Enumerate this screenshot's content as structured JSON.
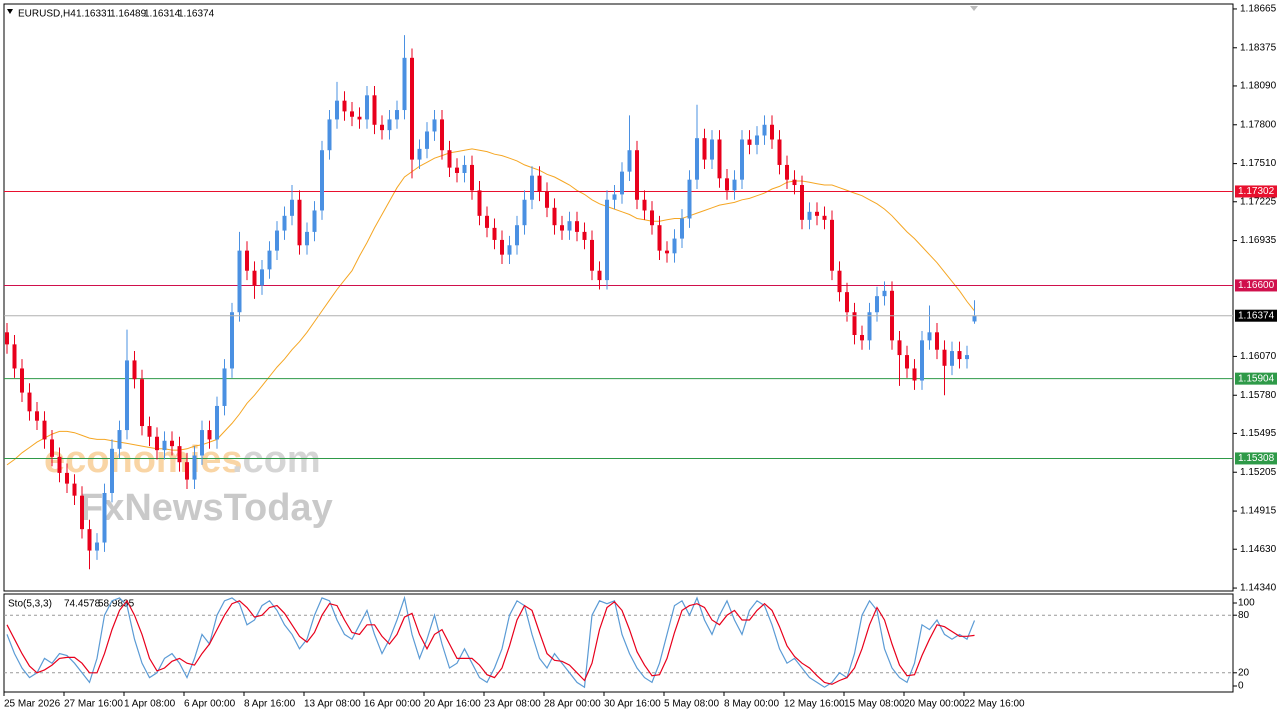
{
  "chart_data": {
    "type": "candlestick",
    "symbol": "EURUSD,H4",
    "categories": [
      "25 Mar 2026",
      null,
      null,
      null,
      null,
      null,
      null,
      null,
      "27 Mar 16:00",
      null,
      null,
      null,
      null,
      null,
      null,
      null,
      "1 Apr 08:00",
      null,
      null,
      null,
      null,
      null,
      null,
      null,
      "6 Apr 00:00",
      null,
      null,
      null,
      null,
      null,
      null,
      null,
      "8 Apr 16:00",
      null,
      null,
      null,
      null,
      null,
      null,
      null,
      "13 Apr 08:00",
      null,
      null,
      null,
      null,
      null,
      null,
      null,
      "16 Apr 00:00",
      null,
      null,
      null,
      null,
      null,
      null,
      null,
      "20 Apr 16:00",
      null,
      null,
      null,
      null,
      null,
      null,
      null,
      "23 Apr 08:00",
      null,
      null,
      null,
      null,
      null,
      null,
      null,
      "28 Apr 00:00",
      null,
      null,
      null,
      null,
      null,
      null,
      null,
      "30 Apr 16:00",
      null,
      null,
      null,
      null,
      null,
      null,
      null,
      "5 May 08:00",
      null,
      null,
      null,
      null,
      null,
      null,
      null,
      "8 May 00:00",
      null,
      null,
      null,
      null,
      null,
      null,
      null,
      "12 May 16:00",
      null,
      null,
      null,
      null,
      null,
      null,
      null,
      "15 May 08:00",
      null,
      null,
      null,
      null,
      null,
      null,
      null,
      "20 May 00:00",
      null,
      null,
      null,
      null,
      null,
      null,
      null,
      "22 May 16:00",
      null
    ],
    "open": [
      1.1625,
      1.1616,
      1.1598,
      1.158,
      1.1566,
      1.1559,
      1.1545,
      1.1532,
      1.152,
      1.1512,
      1.1503,
      1.1478,
      1.1462,
      1.1468,
      1.1505,
      1.1538,
      1.1552,
      1.1604,
      1.159,
      1.1555,
      1.1547,
      1.1537,
      1.1544,
      1.154,
      1.1528,
      1.1515,
      1.1533,
      1.1552,
      1.1545,
      1.157,
      1.1598,
      1.164,
      1.1686,
      1.1671,
      1.166,
      1.1672,
      1.1686,
      1.1701,
      1.1712,
      1.1724,
      1.169,
      1.17,
      1.1716,
      1.1761,
      1.1784,
      1.1798,
      1.179,
      1.1786,
      1.1784,
      1.1802,
      1.178,
      1.1776,
      1.1784,
      1.1791,
      1.183,
      1.1754,
      1.1762,
      1.1775,
      1.1784,
      1.1761,
      1.1748,
      1.1744,
      1.175,
      1.1731,
      1.1712,
      1.1703,
      1.1694,
      1.1683,
      1.169,
      1.1705,
      1.1724,
      1.1742,
      1.173,
      1.1718,
      1.1705,
      1.1701,
      1.1708,
      1.17,
      1.1694,
      1.1671,
      1.1664,
      1.1724,
      1.1728,
      1.1745,
      1.1761,
      1.1724,
      1.1716,
      1.1705,
      1.1686,
      1.1684,
      1.1695,
      1.171,
      1.1739,
      1.177,
      1.1754,
      1.1769,
      1.174,
      1.1731,
      1.1739,
      1.1769,
      1.1765,
      1.1772,
      1.178,
      1.1769,
      1.175,
      1.1739,
      1.1735,
      1.1709,
      1.1715,
      1.1712,
      1.1709,
      1.1671,
      1.1655,
      1.164,
      1.1623,
      1.1619,
      1.164,
      1.1652,
      1.1656,
      1.1619,
      1.1608,
      1.1598,
      1.1589,
      1.1619,
      1.1625,
      1.1612,
      1.16,
      1.1611,
      1.1605,
      1.16331
    ],
    "high": [
      1.1632,
      1.1623,
      1.1605,
      1.1587,
      1.1573,
      1.1566,
      1.1552,
      1.1539,
      1.1527,
      1.1519,
      1.151,
      1.1485,
      1.1475,
      1.1512,
      1.1545,
      1.1559,
      1.1627,
      1.1611,
      1.1597,
      1.1562,
      1.1554,
      1.1551,
      1.1551,
      1.1547,
      1.1535,
      1.154,
      1.1559,
      1.1559,
      1.1577,
      1.1605,
      1.1647,
      1.17,
      1.1693,
      1.1678,
      1.1679,
      1.1693,
      1.1708,
      1.1719,
      1.1735,
      1.1731,
      1.1707,
      1.1723,
      1.1768,
      1.1791,
      1.1812,
      1.1805,
      1.1797,
      1.1793,
      1.1809,
      1.1809,
      1.1787,
      1.1791,
      1.1798,
      1.1847,
      1.1837,
      1.1769,
      1.1782,
      1.1791,
      1.1791,
      1.1768,
      1.1755,
      1.1757,
      1.1757,
      1.1738,
      1.1719,
      1.171,
      1.1701,
      1.1697,
      1.1712,
      1.1731,
      1.1749,
      1.1749,
      1.1737,
      1.1725,
      1.1712,
      1.1715,
      1.1715,
      1.1707,
      1.1701,
      1.1678,
      1.1731,
      1.1735,
      1.1752,
      1.1787,
      1.1768,
      1.1731,
      1.1723,
      1.1712,
      1.1693,
      1.1702,
      1.1717,
      1.1746,
      1.1795,
      1.1777,
      1.1776,
      1.1776,
      1.1747,
      1.1746,
      1.1776,
      1.1776,
      1.1779,
      1.1787,
      1.1787,
      1.1776,
      1.1757,
      1.1746,
      1.1742,
      1.1722,
      1.1722,
      1.1719,
      1.1716,
      1.1678,
      1.1662,
      1.1647,
      1.163,
      1.1647,
      1.1659,
      1.1663,
      1.1663,
      1.1626,
      1.1615,
      1.1605,
      1.1626,
      1.1645,
      1.1632,
      1.1619,
      1.1618,
      1.1618,
      1.1615,
      1.16489
    ],
    "low": [
      1.1609,
      1.1591,
      1.1573,
      1.1559,
      1.1552,
      1.1538,
      1.1525,
      1.1513,
      1.1505,
      1.1496,
      1.1471,
      1.1448,
      1.1455,
      1.1461,
      1.1498,
      1.1531,
      1.1545,
      1.1583,
      1.1548,
      1.154,
      1.153,
      1.153,
      1.1533,
      1.1521,
      1.1508,
      1.1508,
      1.1526,
      1.1538,
      1.1538,
      1.1563,
      1.1591,
      1.1633,
      1.1664,
      1.165,
      1.1653,
      1.1665,
      1.1679,
      1.1694,
      1.1705,
      1.1683,
      1.1683,
      1.1693,
      1.1709,
      1.1754,
      1.1777,
      1.1783,
      1.1779,
      1.1777,
      1.1777,
      1.1773,
      1.1769,
      1.1769,
      1.1777,
      1.1784,
      1.174,
      1.1747,
      1.1755,
      1.1768,
      1.1754,
      1.1741,
      1.1737,
      1.1737,
      1.1724,
      1.1705,
      1.1696,
      1.1687,
      1.1676,
      1.1676,
      1.1683,
      1.1698,
      1.1717,
      1.1723,
      1.1711,
      1.1698,
      1.1694,
      1.1694,
      1.1693,
      1.1687,
      1.1664,
      1.1657,
      1.1657,
      1.1717,
      1.1721,
      1.1738,
      1.1717,
      1.1709,
      1.1698,
      1.1679,
      1.1677,
      1.1677,
      1.1688,
      1.1703,
      1.1732,
      1.1747,
      1.1747,
      1.1733,
      1.1724,
      1.1724,
      1.1732,
      1.1758,
      1.1758,
      1.1765,
      1.1762,
      1.1743,
      1.1732,
      1.1728,
      1.1702,
      1.1702,
      1.1705,
      1.1702,
      1.1664,
      1.1648,
      1.1633,
      1.1616,
      1.1612,
      1.1612,
      1.1633,
      1.1645,
      1.1612,
      1.1585,
      1.1591,
      1.1582,
      1.1582,
      1.1612,
      1.1605,
      1.1578,
      1.1593,
      1.1598,
      1.1598,
      1.16314
    ],
    "close": [
      1.1616,
      1.1598,
      1.158,
      1.1566,
      1.1559,
      1.1545,
      1.1532,
      1.152,
      1.1512,
      1.1503,
      1.1478,
      1.1462,
      1.1468,
      1.1505,
      1.1538,
      1.1552,
      1.1604,
      1.159,
      1.1555,
      1.1547,
      1.1537,
      1.1544,
      1.154,
      1.1528,
      1.1515,
      1.1533,
      1.1552,
      1.1545,
      1.157,
      1.1598,
      1.164,
      1.1686,
      1.1671,
      1.166,
      1.1672,
      1.1686,
      1.1701,
      1.1712,
      1.1724,
      1.169,
      1.17,
      1.1716,
      1.1761,
      1.1784,
      1.1798,
      1.179,
      1.1786,
      1.1784,
      1.1802,
      1.178,
      1.1776,
      1.1784,
      1.1791,
      1.183,
      1.1754,
      1.1762,
      1.1775,
      1.1784,
      1.1761,
      1.1748,
      1.1744,
      1.175,
      1.1731,
      1.1712,
      1.1703,
      1.1694,
      1.1683,
      1.169,
      1.1705,
      1.1724,
      1.1742,
      1.173,
      1.1718,
      1.1705,
      1.1701,
      1.1708,
      1.17,
      1.1694,
      1.1671,
      1.1664,
      1.1724,
      1.1728,
      1.1745,
      1.1761,
      1.1724,
      1.1716,
      1.1705,
      1.1686,
      1.1684,
      1.1695,
      1.171,
      1.1739,
      1.177,
      1.1754,
      1.1769,
      1.174,
      1.1731,
      1.1739,
      1.1769,
      1.1765,
      1.1772,
      1.178,
      1.1769,
      1.175,
      1.1739,
      1.1735,
      1.1709,
      1.1715,
      1.1712,
      1.1709,
      1.1671,
      1.1655,
      1.164,
      1.1623,
      1.1619,
      1.164,
      1.1652,
      1.1656,
      1.1619,
      1.1608,
      1.1598,
      1.1589,
      1.1619,
      1.1625,
      1.1612,
      1.16,
      1.1611,
      1.1605,
      1.1608,
      1.16374
    ],
    "up_color": "#4a90e2",
    "down_color": "#e8001c",
    "ylim": [
      1.14318,
      1.18702
    ],
    "yticks": [
      1.18665,
      1.18375,
      {
        "value": 1.1809,
        "label": "1.18090"
      },
      {
        "value": 1.178,
        "label": "1.17800"
      },
      {
        "value": 1.1751,
        "label": "1.17510"
      },
      1.17225,
      1.16935,
      {
        "value": 1.1607,
        "label": "1.16070"
      },
      {
        "value": 1.1578,
        "label": "1.15780"
      },
      1.15495,
      1.15205,
      1.14915,
      {
        "value": 1.1463,
        "label": "1.14630"
      },
      {
        "value": 1.1434,
        "label": "1.14340"
      }
    ],
    "ma": {
      "color": "#f5a623",
      "values": [
        1.1526,
        1.153,
        1.1535,
        1.1539,
        1.1543,
        1.1546,
        1.1549,
        1.1551,
        1.1551,
        1.155,
        1.1548,
        1.1546,
        1.1545,
        1.1545,
        1.1544,
        1.1543,
        1.1542,
        1.1541,
        1.154,
        1.1539,
        1.1538,
        1.1538,
        1.1537,
        1.1537,
        1.1538,
        1.154,
        1.1541,
        1.1543,
        1.1545,
        1.1551,
        1.1557,
        1.1564,
        1.1572,
        1.1578,
        1.1585,
        1.1592,
        1.1599,
        1.1605,
        1.1612,
        1.1618,
        1.1625,
        1.1633,
        1.1641,
        1.1649,
        1.1657,
        1.1664,
        1.1671,
        1.1682,
        1.1692,
        1.1703,
        1.1713,
        1.1723,
        1.1733,
        1.1741,
        1.1745,
        1.1749,
        1.1752,
        1.1755,
        1.1757,
        1.1759,
        1.176,
        1.1761,
        1.1762,
        1.1761,
        1.176,
        1.1758,
        1.1757,
        1.1755,
        1.1753,
        1.175,
        1.1748,
        1.1746,
        1.1743,
        1.1741,
        1.1738,
        1.1735,
        1.1731,
        1.1728,
        1.1724,
        1.1721,
        1.1719,
        1.1717,
        1.1715,
        1.1713,
        1.171,
        1.1709,
        1.1708,
        1.1708,
        1.1709,
        1.171,
        1.171,
        1.1712,
        1.1714,
        1.1716,
        1.1718,
        1.172,
        1.1721,
        1.1722,
        1.1724,
        1.1725,
        1.1727,
        1.1729,
        1.1732,
        1.1734,
        1.1737,
        1.1738,
        1.1738,
        1.1737,
        1.1736,
        1.1735,
        1.1735,
        1.1733,
        1.1731,
        1.1729,
        1.1727,
        1.1724,
        1.1721,
        1.1717,
        1.1712,
        1.1706,
        1.17,
        1.1695,
        1.1689,
        1.1683,
        1.1677,
        1.167,
        1.1663,
        1.1656,
        1.1648,
        1.1641
      ]
    },
    "levels": [
      {
        "value": 1.17302,
        "color": "#e8102e"
      },
      {
        "value": 1.166,
        "label": "1.16600",
        "color": "#d0104c"
      },
      {
        "value": 1.15904,
        "color": "#2e9a48"
      },
      {
        "value": 1.15308,
        "color": "#2e9a48"
      }
    ],
    "current_price_color": "#b0b0b0",
    "watermark": [
      "economies",
      ".com",
      "FxNewsToday"
    ],
    "indicator": {
      "type": "stochastic",
      "name": "Sto(5,3,3)",
      "ylim": [
        0,
        100
      ],
      "yticks": [
        100,
        80,
        20,
        0
      ],
      "series": [
        {
          "color": "#5b9bd5",
          "values": [
            60,
            40,
            25,
            15,
            20,
            35,
            30,
            40,
            38,
            30,
            20,
            10,
            35,
            80,
            95,
            98,
            90,
            55,
            30,
            15,
            20,
            35,
            40,
            30,
            15,
            35,
            60,
            50,
            80,
            95,
            98,
            92,
            70,
            75,
            90,
            95,
            85,
            70,
            60,
            45,
            55,
            80,
            98,
            95,
            75,
            60,
            55,
            70,
            85,
            60,
            40,
            55,
            75,
            98,
            60,
            35,
            55,
            80,
            50,
            25,
            30,
            45,
            30,
            15,
            10,
            25,
            45,
            80,
            95,
            90,
            60,
            35,
            25,
            40,
            30,
            20,
            10,
            5,
            80,
            95,
            92,
            95,
            60,
            40,
            25,
            15,
            10,
            30,
            60,
            90,
            95,
            80,
            98,
            75,
            60,
            80,
            95,
            75,
            60,
            85,
            95,
            90,
            70,
            45,
            30,
            35,
            25,
            15,
            10,
            5,
            10,
            20,
            15,
            40,
            80,
            95,
            85,
            45,
            25,
            15,
            10,
            30,
            70,
            65,
            75,
            60,
            55,
            60,
            55,
            74.4578
          ]
        },
        {
          "color": "#e8001c",
          "values": [
            70,
            55,
            40,
            27,
            20,
            23,
            28,
            35,
            36,
            36,
            30,
            20,
            20,
            40,
            65,
            85,
            95,
            80,
            60,
            35,
            22,
            25,
            32,
            35,
            30,
            28,
            40,
            50,
            65,
            80,
            92,
            95,
            88,
            78,
            80,
            88,
            90,
            82,
            70,
            58,
            52,
            62,
            80,
            92,
            90,
            75,
            62,
            60,
            70,
            70,
            58,
            50,
            60,
            78,
            82,
            60,
            45,
            60,
            65,
            50,
            35,
            35,
            35,
            28,
            18,
            15,
            25,
            48,
            75,
            90,
            85,
            62,
            40,
            33,
            32,
            28,
            20,
            12,
            30,
            65,
            88,
            94,
            85,
            65,
            42,
            28,
            17,
            18,
            35,
            62,
            85,
            90,
            92,
            88,
            75,
            70,
            80,
            85,
            75,
            75,
            85,
            92,
            85,
            68,
            48,
            37,
            30,
            25,
            17,
            10,
            8,
            12,
            15,
            25,
            45,
            70,
            88,
            75,
            50,
            28,
            17,
            18,
            38,
            55,
            70,
            68,
            63,
            58,
            58,
            58.9835
          ]
        }
      ]
    }
  }
}
